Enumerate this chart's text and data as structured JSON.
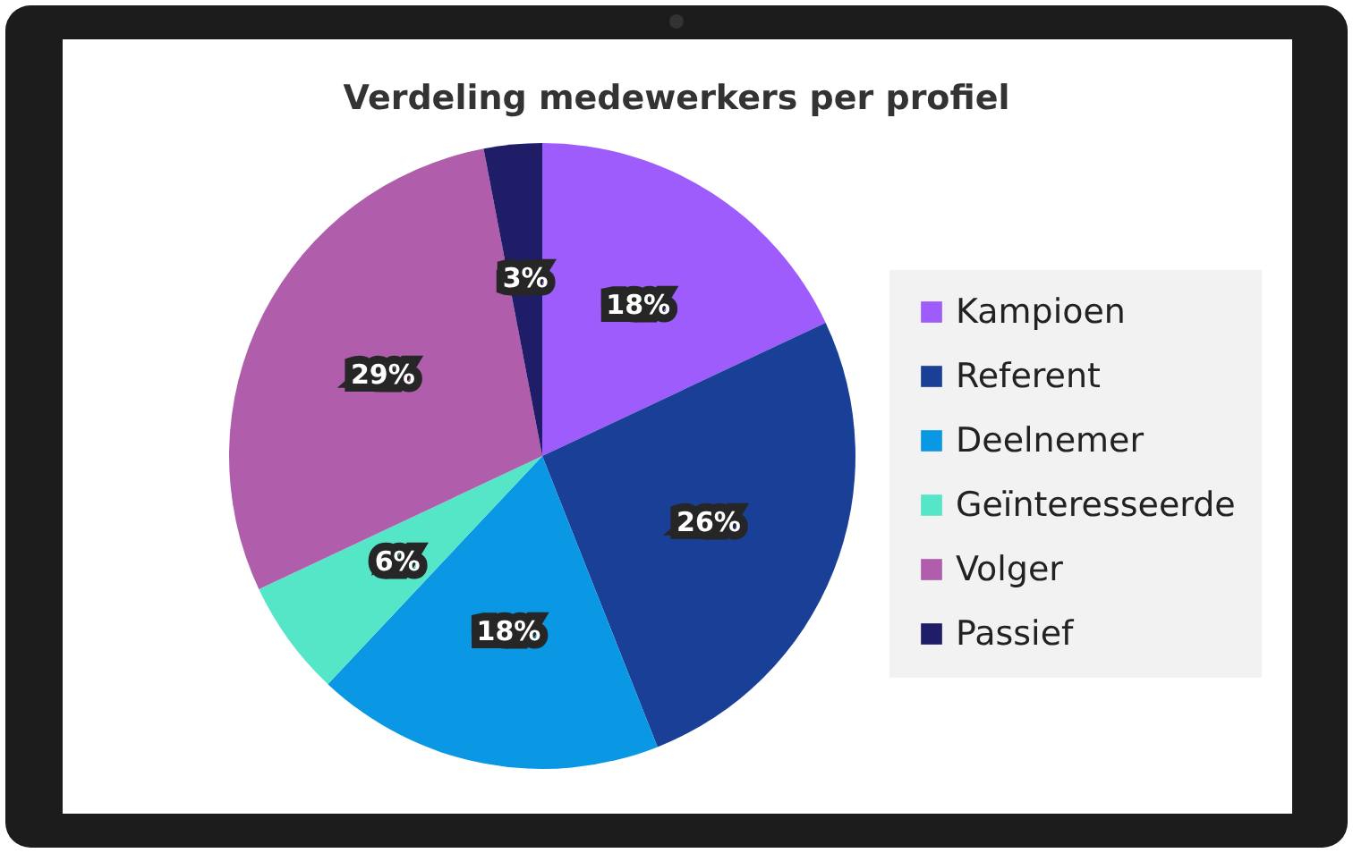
{
  "chart_data": {
    "type": "pie",
    "title": "Verdeling medewerkers per profiel",
    "categories": [
      "Kampioen",
      "Referent",
      "Deelnemer",
      "Geïnteresseerde",
      "Volger",
      "Passief"
    ],
    "values": [
      18,
      26,
      18,
      6,
      29,
      3
    ],
    "colors": [
      "#9d5cfb",
      "#1a3f96",
      "#0a97e3",
      "#55e6c8",
      "#b05eac",
      "#1f1c68"
    ],
    "value_labels": [
      "18%",
      "26%",
      "18%",
      "6%",
      "29%",
      "3%"
    ],
    "legend": "right"
  }
}
